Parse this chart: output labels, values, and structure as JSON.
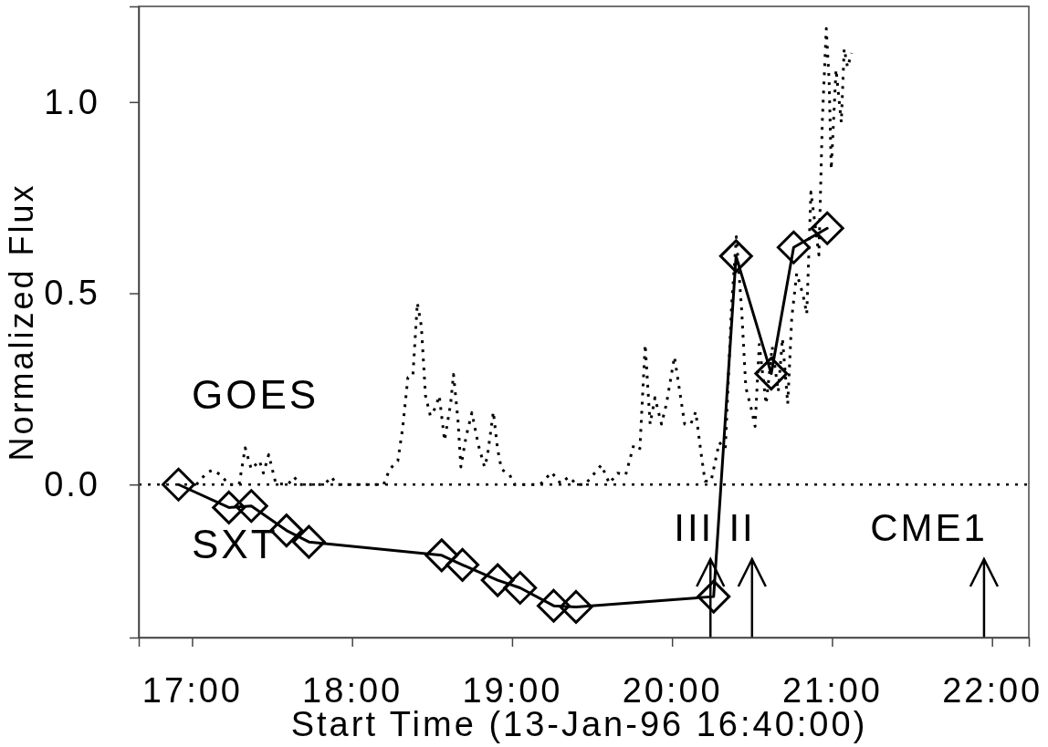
{
  "chart_data": {
    "type": "line",
    "xlabel": "Start Time (13-Jan-96 16:40:00)",
    "ylabel": "Normalized Flux",
    "xlim": [
      16.6667,
      22.23
    ],
    "ylim": [
      -0.4,
      1.25
    ],
    "xticks": [
      {
        "value": 17,
        "label": "17:00"
      },
      {
        "value": 18,
        "label": "18:00"
      },
      {
        "value": 19,
        "label": "19:00"
      },
      {
        "value": 20,
        "label": "20:00"
      },
      {
        "value": 21,
        "label": "21:00"
      },
      {
        "value": 22,
        "label": "22:00"
      }
    ],
    "yticks": [
      {
        "value": 0,
        "label": "0.0"
      },
      {
        "value": 0.5,
        "label": "0.5"
      },
      {
        "value": 1,
        "label": "1.0"
      }
    ],
    "grid": false,
    "series": [
      {
        "name": "GOES",
        "color": "#000000",
        "line_style": "dotted",
        "marker": "none",
        "x": [
          17.027,
          17.09,
          17.128,
          17.179,
          17.23,
          17.294,
          17.332,
          17.37,
          17.421,
          17.446,
          17.479,
          17.523,
          17.599,
          17.637,
          17.675,
          17.828,
          17.871,
          17.904,
          18.197,
          18.235,
          18.286,
          18.316,
          18.349,
          18.38,
          18.408,
          18.433,
          18.459,
          18.489,
          18.52,
          18.545,
          18.578,
          18.616,
          18.634,
          18.662,
          18.68,
          18.713,
          18.749,
          18.789,
          18.828,
          18.845,
          18.883,
          18.909,
          18.934,
          18.985,
          19.018,
          19.176,
          19.247,
          19.303,
          19.354,
          19.405,
          19.456,
          19.558,
          19.608,
          19.659,
          19.71,
          19.761,
          19.799,
          19.832,
          19.863,
          19.893,
          19.934,
          19.965,
          20.015,
          20.079,
          20.117,
          20.148,
          20.181,
          20.206,
          20.244,
          20.295,
          20.333,
          20.372,
          20.402,
          20.435,
          20.461,
          20.494,
          20.519,
          20.545,
          20.588,
          20.626,
          20.664,
          20.69,
          20.723,
          20.748,
          20.779,
          20.817,
          20.842,
          20.868,
          20.918,
          20.939,
          20.964,
          20.982,
          20.995,
          21.025,
          21.058,
          21.076,
          21.097,
          21.122
        ],
        "values": [
          0,
          0.03,
          0.038,
          0.025,
          0,
          0,
          0.096,
          0.04,
          0.062,
          0.03,
          0.078,
          0.003,
          0,
          0.02,
          0,
          0,
          0.02,
          0,
          0,
          0.04,
          0.062,
          0.147,
          0.28,
          0.284,
          0.475,
          0.414,
          0.232,
          0.18,
          0.2,
          0.232,
          0.115,
          0.211,
          0.288,
          0.168,
          0.046,
          0.126,
          0.188,
          0.104,
          0.046,
          0.072,
          0.19,
          0.094,
          0.04,
          0.025,
          0,
          0,
          0.032,
          0.003,
          0.02,
          0,
          0,
          0.051,
          0.003,
          0.03,
          0.025,
          0.104,
          0.094,
          0.366,
          0.158,
          0.227,
          0.158,
          0.211,
          0.334,
          0.158,
          0.158,
          0.19,
          0.083,
          0.009,
          0.009,
          0.11,
          0.094,
          0.467,
          0.648,
          0.456,
          0.254,
          0.2,
          0.152,
          0.366,
          0.211,
          0.36,
          0.243,
          0.382,
          0.211,
          0.435,
          0.552,
          0.499,
          0.446,
          0.765,
          0.6,
          0.947,
          1.192,
          1.053,
          0.824,
          1.085,
          0.947,
          1.139,
          1.091,
          1.128
        ]
      },
      {
        "name": "SXT",
        "color": "#000000",
        "line_style": "solid",
        "marker": "diamond",
        "x": [
          16.915,
          17.23,
          17.37,
          17.59,
          17.73,
          18.56,
          18.69,
          18.91,
          19.05,
          19.26,
          19.4,
          20.26,
          20.4,
          20.62,
          20.76,
          20.97
        ],
        "values": [
          0,
          -0.06,
          -0.056,
          -0.12,
          -0.15,
          -0.185,
          -0.21,
          -0.25,
          -0.27,
          -0.317,
          -0.32,
          -0.293,
          0.597,
          0.29,
          0.62,
          0.67
        ]
      }
    ],
    "ref_lines": [
      {
        "axis": "y",
        "value": 0,
        "line_style": "dotted",
        "color": "#000000"
      },
      {
        "axis": "x",
        "value": 20.24,
        "label": "III",
        "color": "#000000"
      },
      {
        "axis": "x",
        "value": 20.5,
        "label": "II",
        "color": "#000000"
      },
      {
        "axis": "x",
        "value": 21.95,
        "label": "CME1",
        "color": "#000000"
      }
    ]
  }
}
